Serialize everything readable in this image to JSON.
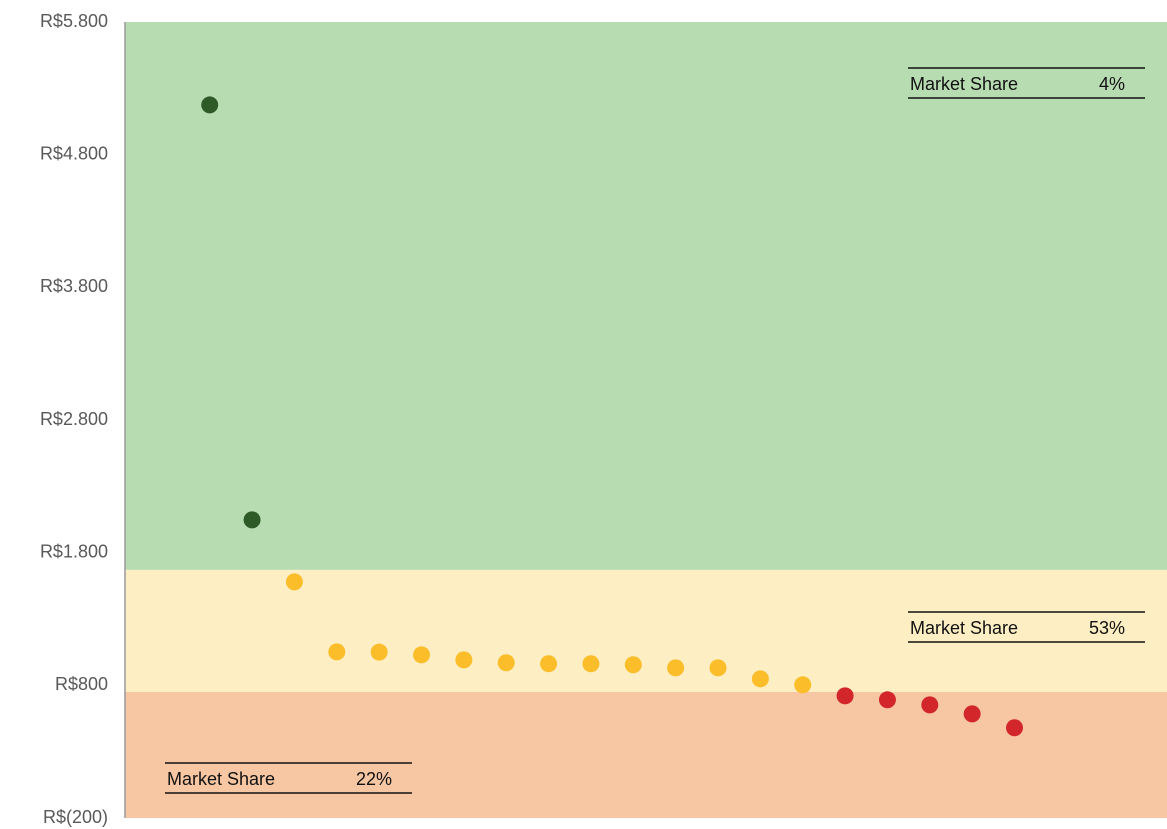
{
  "chart_data": {
    "type": "scatter",
    "x": [
      2,
      3,
      4,
      5,
      6,
      7,
      8,
      9,
      10,
      11,
      12,
      13,
      14,
      15,
      16,
      17,
      18,
      19,
      20,
      21
    ],
    "values": [
      5175,
      2047,
      1580,
      1052,
      1050,
      1030,
      992,
      970,
      963,
      963,
      955,
      932,
      932,
      849,
      804,
      721,
      691,
      653,
      585,
      480
    ],
    "colors": [
      "#2e5a27",
      "#2e5a27",
      "#fbbd2a",
      "#fbbd2a",
      "#fbbd2a",
      "#fbbd2a",
      "#fbbd2a",
      "#fbbd2a",
      "#fbbd2a",
      "#fbbd2a",
      "#fbbd2a",
      "#fbbd2a",
      "#fbbd2a",
      "#fbbd2a",
      "#fbbd2a",
      "#d2262b",
      "#d2262b",
      "#d2262b",
      "#d2262b",
      "#d2262b"
    ],
    "xlim": [
      0,
      24.6
    ],
    "ylim": [
      -200,
      5800
    ],
    "yticks": [
      {
        "value": -200,
        "label": "R$(200)"
      },
      {
        "value": 800,
        "label": "R$800"
      },
      {
        "value": 1800,
        "label": "R$1.800"
      },
      {
        "value": 2800,
        "label": "R$2.800"
      },
      {
        "value": 3800,
        "label": "R$3.800"
      },
      {
        "value": 4800,
        "label": "R$4.800"
      },
      {
        "value": 5800,
        "label": "R$5.800"
      }
    ],
    "bands": [
      {
        "from": 1670,
        "to": 5800,
        "color": "#b8dcb2"
      },
      {
        "from": 750,
        "to": 1670,
        "color": "#fdefc3"
      },
      {
        "from": -200,
        "to": 750,
        "color": "#f7c6a3"
      }
    ],
    "annotations": [
      {
        "label": "Market Share",
        "value": "4%"
      },
      {
        "label": "Market Share",
        "value": "53%"
      },
      {
        "label": "Market Share",
        "value": "22%"
      }
    ]
  }
}
